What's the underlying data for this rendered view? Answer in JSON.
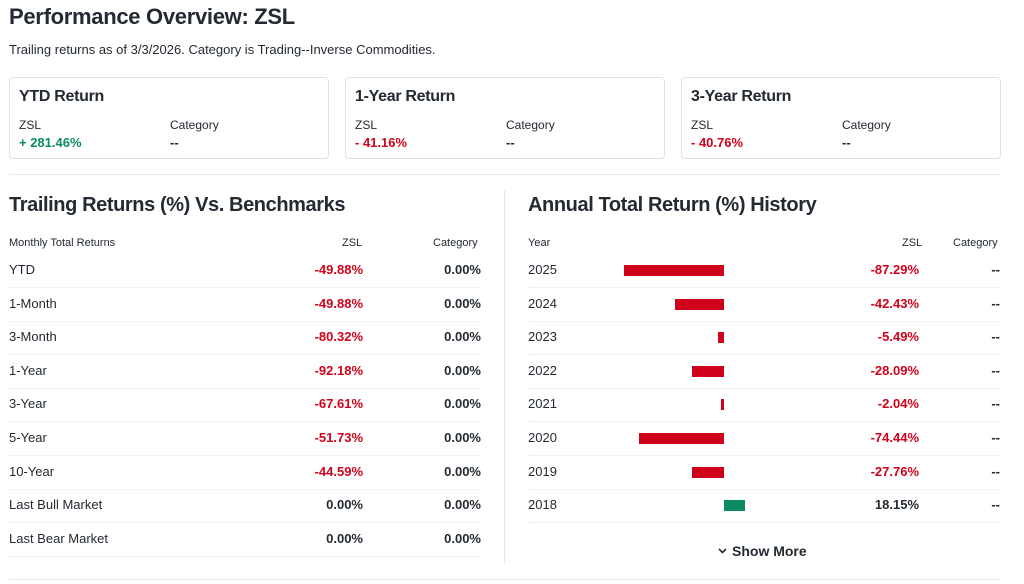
{
  "page": {
    "title": "Performance Overview: ZSL",
    "subtitle": "Trailing returns as of 3/3/2026. Category is Trading--Inverse Commodities."
  },
  "cards": [
    {
      "title": "YTD Return",
      "label_a": "ZSL",
      "value_a": "+ 281.46%",
      "label_b": "Category",
      "value_b": "--"
    },
    {
      "title": "1-Year Return",
      "label_a": "ZSL",
      "value_a": "- 41.16%",
      "label_b": "Category",
      "value_b": "--"
    },
    {
      "title": "3-Year Return",
      "label_a": "ZSL",
      "value_a": "- 40.76%",
      "label_b": "Category",
      "value_b": "--"
    }
  ],
  "trailing": {
    "title": "Trailing Returns (%) Vs. Benchmarks",
    "headers": {
      "name": "Monthly Total Returns",
      "zsl": "ZSL",
      "category": "Category"
    },
    "rows": [
      {
        "name": "YTD",
        "zsl": "-49.88%",
        "category": "0.00%"
      },
      {
        "name": "1-Month",
        "zsl": "-49.88%",
        "category": "0.00%"
      },
      {
        "name": "3-Month",
        "zsl": "-80.32%",
        "category": "0.00%"
      },
      {
        "name": "1-Year",
        "zsl": "-92.18%",
        "category": "0.00%"
      },
      {
        "name": "3-Year",
        "zsl": "-67.61%",
        "category": "0.00%"
      },
      {
        "name": "5-Year",
        "zsl": "-51.73%",
        "category": "0.00%"
      },
      {
        "name": "10-Year",
        "zsl": "-44.59%",
        "category": "0.00%"
      },
      {
        "name": "Last Bull Market",
        "zsl": "0.00%",
        "category": "0.00%"
      },
      {
        "name": "Last Bear Market",
        "zsl": "0.00%",
        "category": "0.00%"
      }
    ]
  },
  "annual": {
    "title": "Annual Total Return (%) History",
    "headers": {
      "year": "Year",
      "zsl": "ZSL",
      "category": "Category"
    },
    "rows": [
      {
        "year": "2025",
        "zsl": "-87.29%",
        "category": "--"
      },
      {
        "year": "2024",
        "zsl": "-42.43%",
        "category": "--"
      },
      {
        "year": "2023",
        "zsl": "-5.49%",
        "category": "--"
      },
      {
        "year": "2022",
        "zsl": "-28.09%",
        "category": "--"
      },
      {
        "year": "2021",
        "zsl": "-2.04%",
        "category": "--"
      },
      {
        "year": "2020",
        "zsl": "-74.44%",
        "category": "--"
      },
      {
        "year": "2019",
        "zsl": "-27.76%",
        "category": "--"
      },
      {
        "year": "2018",
        "zsl": "18.15%",
        "category": "--"
      }
    ],
    "show_more_label": "Show More"
  },
  "chart_data": {
    "type": "bar",
    "categories": [
      "2025",
      "2024",
      "2023",
      "2022",
      "2021",
      "2020",
      "2019",
      "2018"
    ],
    "values": [
      -87.29,
      -42.43,
      -5.49,
      -28.09,
      -2.04,
      -74.44,
      -27.76,
      18.15
    ]
  },
  "colors": {
    "negative": "#d0021b",
    "positive": "#0b8a64",
    "text": "#232a31",
    "border": "#dfe1e5"
  },
  "icons": {
    "show_more": "chevron-down-icon"
  }
}
